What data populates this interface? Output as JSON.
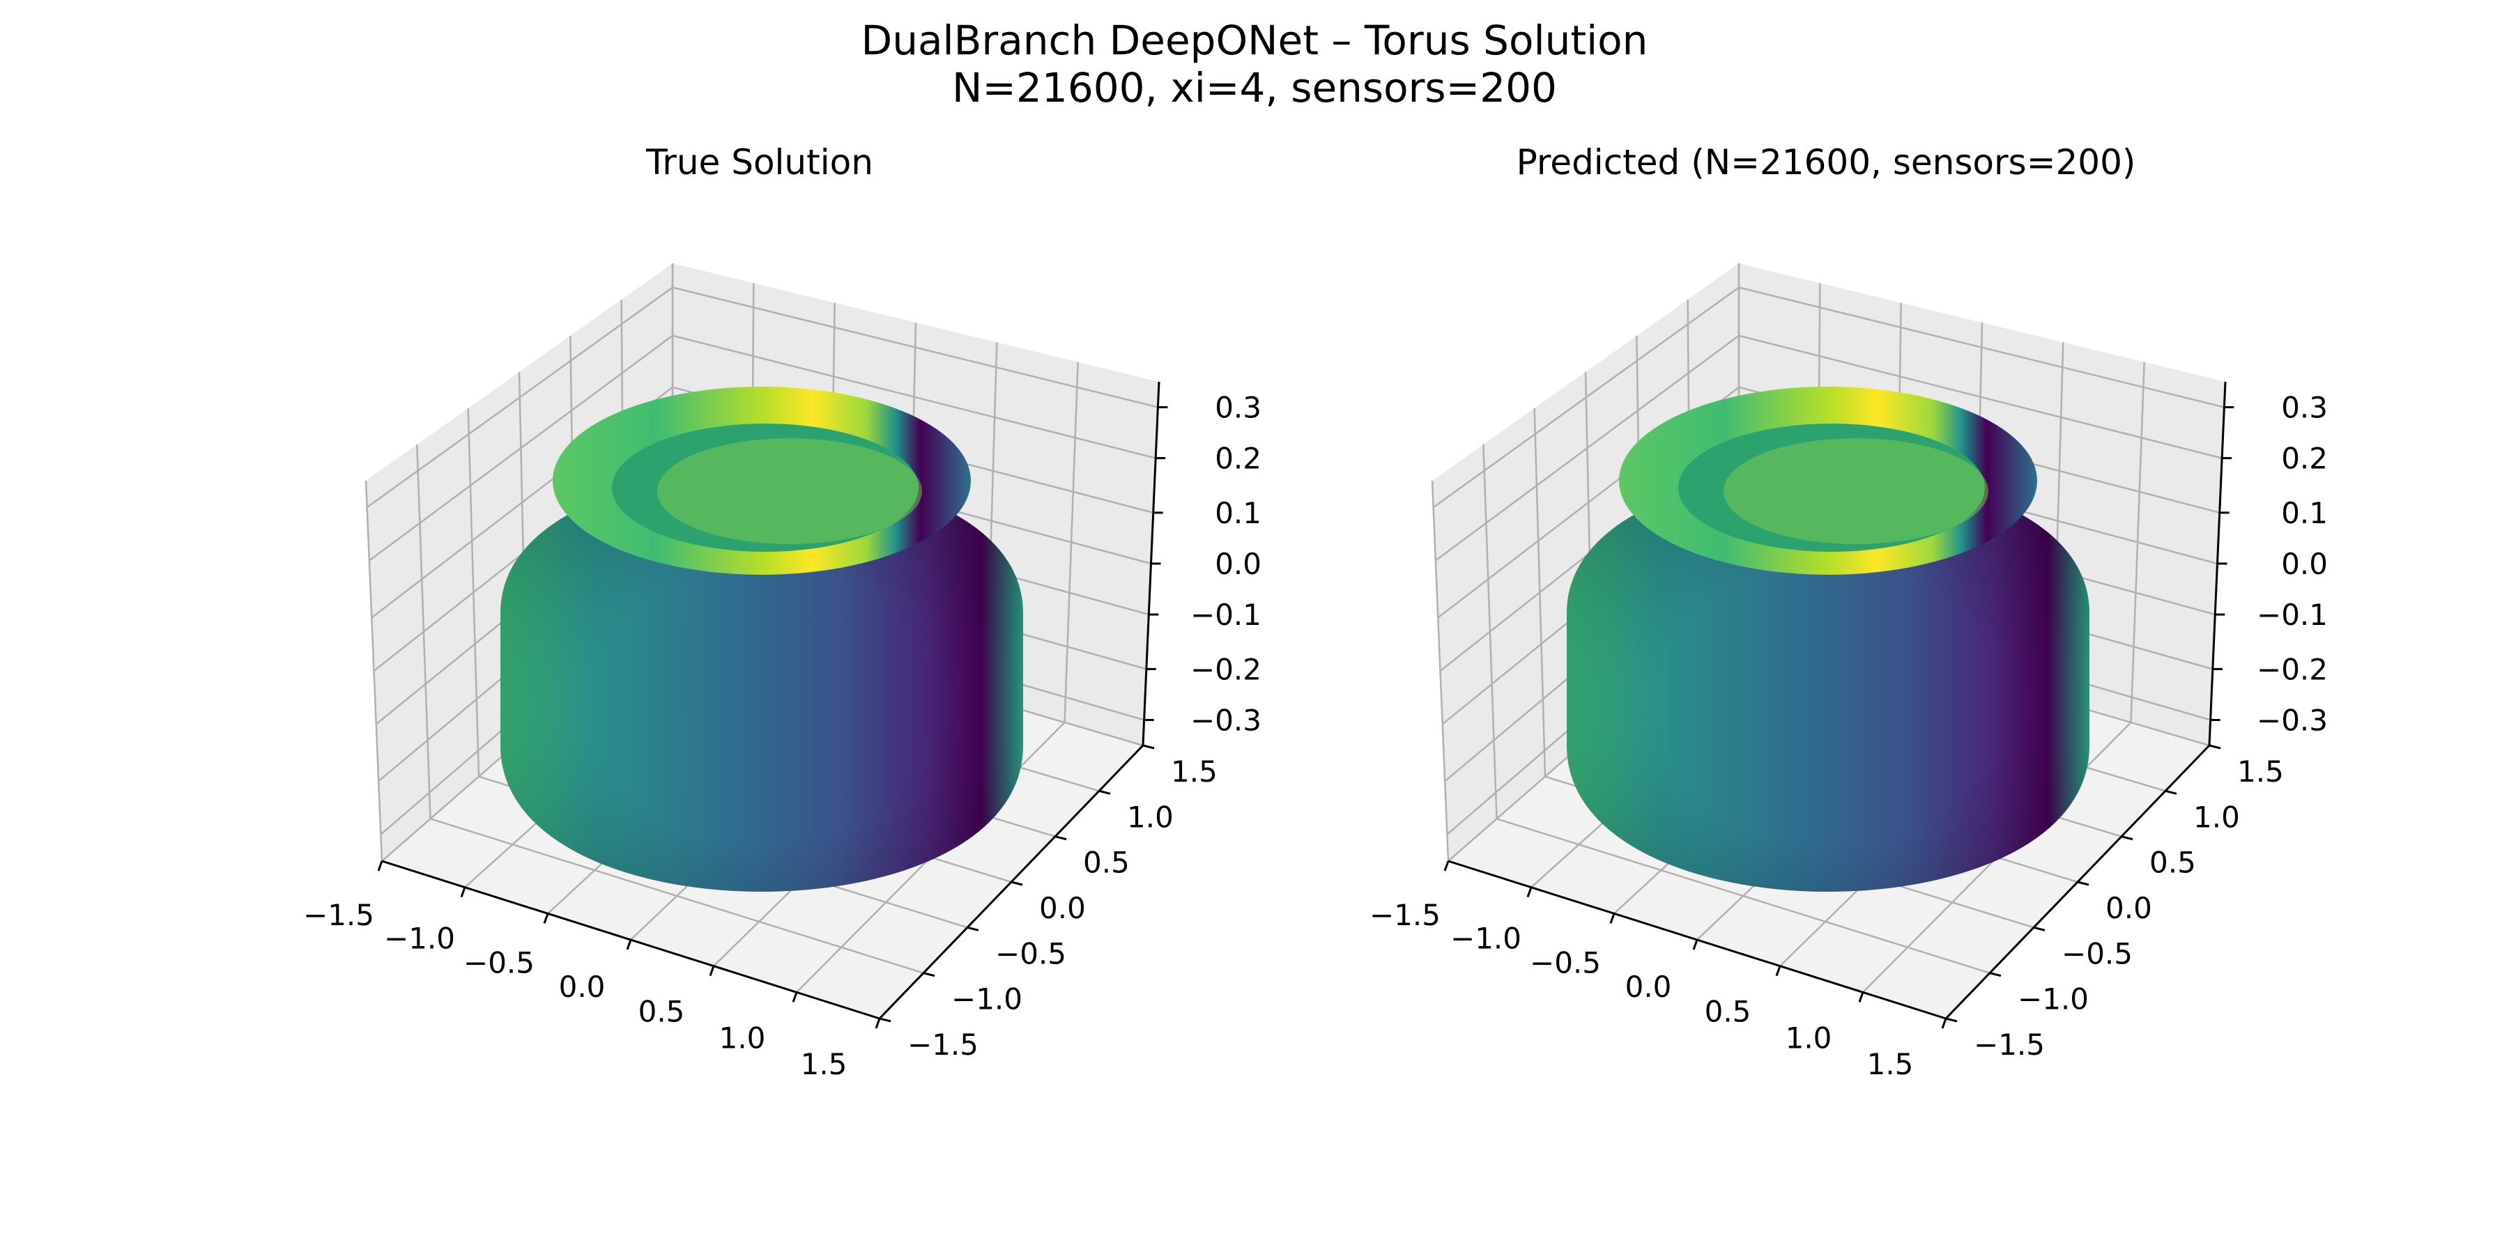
{
  "figure": {
    "title_line1": "DualBranch DeepONet – Torus Solution",
    "title_line2": "N=21600, xi=4, sensors=200"
  },
  "colors": {
    "pane_side": "#eaeaea",
    "pane_floor": "#f2f2f2",
    "grid": "#b0b0b0",
    "axis": "#000000",
    "colormap": "viridis"
  },
  "chart_data": [
    {
      "type": "surface3d",
      "title": "True Solution",
      "surface": "torus",
      "colormap": "viridis",
      "xlim": [
        -1.5,
        1.5
      ],
      "ylim": [
        -1.5,
        1.5
      ],
      "zlim": [
        -0.35,
        0.35
      ],
      "xticks": [
        "−1.5",
        "−1.0",
        "−0.5",
        "0.0",
        "0.5",
        "1.0",
        "1.5"
      ],
      "yticks": [
        "−1.5",
        "−1.0",
        "−0.5",
        "0.0",
        "0.5",
        "1.0",
        "1.5"
      ],
      "zticks": [
        "−0.3",
        "−0.2",
        "−0.1",
        "0.0",
        "0.1",
        "0.2",
        "0.3"
      ],
      "grid": true
    },
    {
      "type": "surface3d",
      "title": "Predicted (N=21600, sensors=200)",
      "surface": "torus",
      "colormap": "viridis",
      "xlim": [
        -1.5,
        1.5
      ],
      "ylim": [
        -1.5,
        1.5
      ],
      "zlim": [
        -0.35,
        0.35
      ],
      "xticks": [
        "−1.5",
        "−1.0",
        "−0.5",
        "0.0",
        "0.5",
        "1.0",
        "1.5"
      ],
      "yticks": [
        "−1.5",
        "−1.0",
        "−0.5",
        "0.0",
        "0.5",
        "1.0",
        "1.5"
      ],
      "zticks": [
        "−0.3",
        "−0.2",
        "−0.1",
        "0.0",
        "0.1",
        "0.2",
        "0.3"
      ],
      "grid": true
    }
  ]
}
